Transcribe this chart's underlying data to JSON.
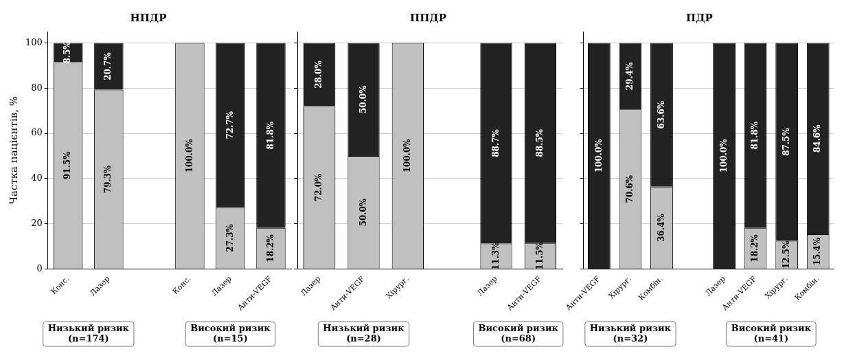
{
  "chart_data": [
    {
      "type": "bar",
      "title": "НПДР",
      "ylabel": "Частка пацієнтів, %",
      "categories": [
        "Конс.",
        "Лазер",
        null,
        "Конс.",
        "Лазер",
        "Анти-VEGF"
      ],
      "stacked": true,
      "ylim": [
        0,
        105
      ],
      "yticks": [
        0,
        20,
        40,
        60,
        80,
        100
      ],
      "grid": "y",
      "legend": false,
      "series": [
        {
          "color": "#c0c0c0",
          "values": [
            91.5,
            79.3,
            null,
            100,
            27.3,
            18.2
          ],
          "value_labels": [
            "91.5%",
            "79.3%",
            null,
            "100.0%",
            "27.3%",
            "18.2%"
          ]
        },
        {
          "color": "#222222",
          "values": [
            8.5,
            20.7,
            null,
            0,
            72.7,
            81.8
          ],
          "value_labels": [
            "8.5%",
            "20.7%",
            null,
            null,
            "72.7%",
            "81.8%"
          ]
        }
      ],
      "annotations": [
        "Низький ризик\n(n=174)",
        "Високий ризик\n(n=15)"
      ]
    },
    {
      "type": "bar",
      "title": "ППДР",
      "categories": [
        "Лазер",
        "Анти-VEGF",
        "Хірург.",
        null,
        "Лазер",
        "Анти-VEGF"
      ],
      "stacked": true,
      "ylim": [
        0,
        105
      ],
      "yticks": [
        0,
        20,
        40,
        60,
        80,
        100
      ],
      "grid": "y",
      "legend": false,
      "tick_labels": "x",
      "series": [
        {
          "color": "#c0c0c0",
          "values": [
            72.0,
            50.0,
            100,
            null,
            11.3,
            11.5
          ],
          "value_labels": [
            "72.0%",
            "50.0%",
            "100.0%",
            null,
            "11.3%",
            "11.5%"
          ]
        },
        {
          "color": "#222222",
          "values": [
            28.0,
            50.0,
            0,
            null,
            88.7,
            88.5
          ],
          "value_labels": [
            "28.0%",
            "50.0%",
            null,
            null,
            "88.7%",
            "88.5%"
          ]
        }
      ],
      "annotations": [
        "Низький ризик\n(n=28)",
        "Високий ризик\n(n=68)"
      ]
    },
    {
      "type": "bar",
      "title": "ПДР",
      "categories": [
        "Анти-VEGF",
        "Хірург.",
        "Комбін.",
        null,
        "Лазер",
        "Анти-VEGF",
        "Хірург.",
        "Комбін."
      ],
      "stacked": true,
      "ylim": [
        0,
        105
      ],
      "yticks": [
        0,
        20,
        40,
        60,
        80,
        100
      ],
      "grid": "y",
      "legend": false,
      "tick_labels": "x",
      "series": [
        {
          "color": "#c0c0c0",
          "values": [
            0,
            70.6,
            36.4,
            null,
            0,
            18.2,
            12.5,
            15.4
          ],
          "value_labels": [
            null,
            "70.6%",
            "36.4%",
            null,
            null,
            "18.2%",
            "12.5%",
            "15.4%"
          ]
        },
        {
          "color": "#222222",
          "values": [
            100,
            29.4,
            63.6,
            null,
            100,
            81.8,
            87.5,
            84.6
          ],
          "value_labels": [
            "100.0%",
            "29.4%",
            "63.6%",
            null,
            "100.0%",
            "81.8%",
            "87.5%",
            "84.6%"
          ]
        }
      ],
      "annotations": [
        "Низький ризик\n(n=32)",
        "Високий ризик\n(n=41)"
      ]
    }
  ]
}
